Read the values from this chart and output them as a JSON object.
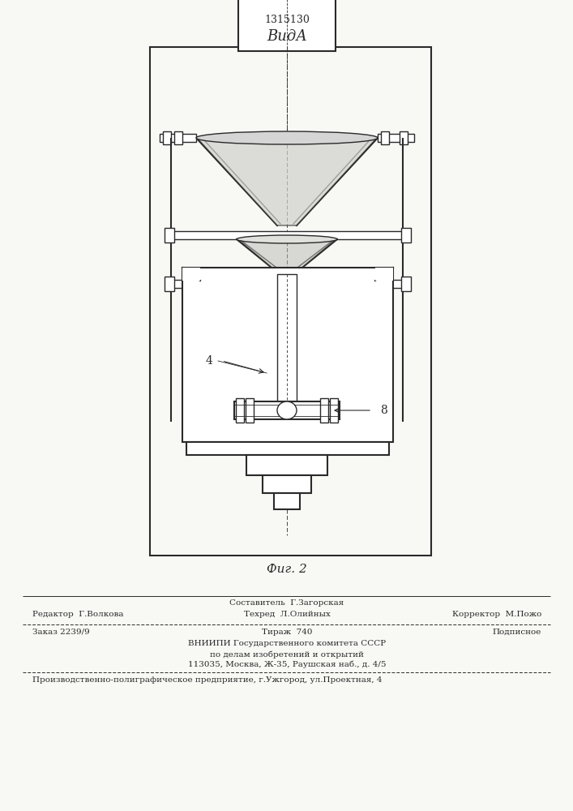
{
  "patent_number": "1315130",
  "title_view": "ВидА",
  "fig_label": "Фиг. 2",
  "label_4": "4",
  "label_8": "8",
  "bg_color": "#f8f8f5",
  "line_color": "#2a2a2a",
  "footer_line1_left": "Редактор  Г.Волкова",
  "footer_line1_center_top": "Составитель  Г.Загорская",
  "footer_line1_center_bot": "Техред  Л.Олийных",
  "footer_line1_right": "Корректор  М.Пожо",
  "footer_line2_left": "Заказ 2239/9",
  "footer_line2_center": "Тираж  740",
  "footer_line2_right": "Подписное",
  "footer_line3": "ВНИИПИ Государственного комитета СССР",
  "footer_line4": "по делам изобретений и открытий",
  "footer_line5": "113035, Москва, Ж-35, Раушская наб., д. 4/5",
  "footer_last": "Производственно-полиграфическое предприятие, г.Ужгород, ул.Проектная, 4"
}
